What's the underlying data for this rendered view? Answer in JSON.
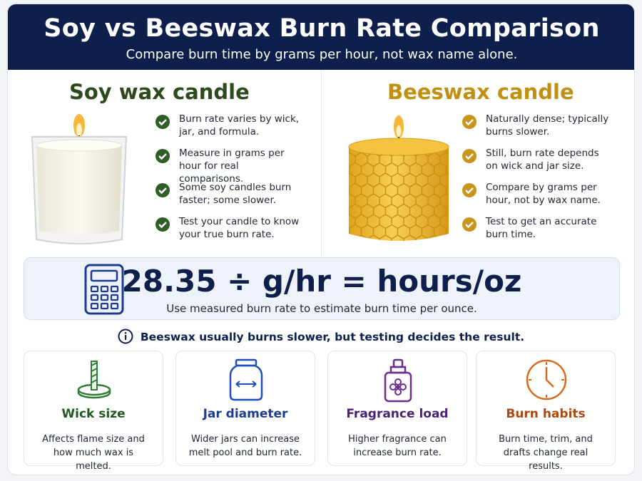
{
  "header": {
    "title": "Soy vs Beeswax Burn Rate Comparison",
    "subtitle": "Compare burn time by grams per hour, not wax name alone."
  },
  "soy": {
    "title": "Soy wax candle",
    "points": [
      "Burn rate varies by wick, jar, and formula.",
      "Measure in grams per hour for real comparisons.",
      "Some soy candles burn faster; some slower.",
      "Test your candle to know your true burn rate."
    ]
  },
  "beeswax": {
    "title": "Beeswax candle",
    "points": [
      "Naturally dense; typically burns slower.",
      "Still, burn rate depends on wick and jar size.",
      "Compare by grams per hour, not by wax name.",
      "Test to get an accurate burn time."
    ]
  },
  "formula": {
    "equation": "28.35 ÷ g/hr = hours/oz",
    "caption": "Use measured burn rate to estimate burn time per ounce."
  },
  "note": "Beeswax usually burns slower, but testing decides the result.",
  "factors": [
    {
      "title": "Wick size",
      "text": "Affects flame size and how much wax is melted."
    },
    {
      "title": "Jar diameter",
      "text": "Wider jars can increase melt pool and burn rate."
    },
    {
      "title": "Fragrance load",
      "text": "Higher fragrance can increase burn rate."
    },
    {
      "title": "Burn habits",
      "text": "Burn time, trim, and drafts change real results."
    }
  ]
}
